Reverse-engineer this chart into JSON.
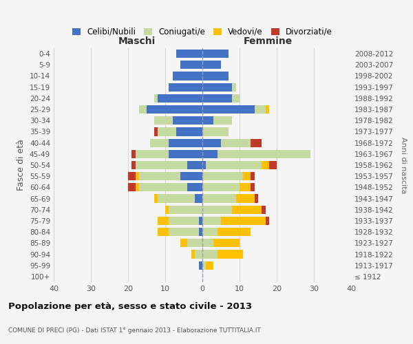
{
  "age_groups": [
    "100+",
    "95-99",
    "90-94",
    "85-89",
    "80-84",
    "75-79",
    "70-74",
    "65-69",
    "60-64",
    "55-59",
    "50-54",
    "45-49",
    "40-44",
    "35-39",
    "30-34",
    "25-29",
    "20-24",
    "15-19",
    "10-14",
    "5-9",
    "0-4"
  ],
  "birth_years": [
    "≤ 1912",
    "1913-1917",
    "1918-1922",
    "1923-1927",
    "1928-1932",
    "1933-1937",
    "1938-1942",
    "1943-1947",
    "1948-1952",
    "1953-1957",
    "1958-1962",
    "1963-1967",
    "1968-1972",
    "1973-1977",
    "1978-1982",
    "1983-1987",
    "1988-1992",
    "1993-1997",
    "1998-2002",
    "2003-2007",
    "2008-2012"
  ],
  "maschi": {
    "celibi": [
      0,
      1,
      0,
      0,
      1,
      1,
      0,
      2,
      4,
      6,
      4,
      9,
      9,
      7,
      8,
      15,
      12,
      9,
      8,
      6,
      7
    ],
    "coniugati": [
      0,
      0,
      2,
      4,
      8,
      8,
      9,
      10,
      13,
      11,
      14,
      9,
      5,
      5,
      5,
      2,
      1,
      0,
      0,
      0,
      0
    ],
    "vedovi": [
      0,
      0,
      1,
      2,
      3,
      3,
      1,
      1,
      1,
      1,
      0,
      0,
      0,
      0,
      0,
      0,
      0,
      0,
      0,
      0,
      0
    ],
    "divorziati": [
      0,
      0,
      0,
      0,
      0,
      0,
      0,
      0,
      2,
      2,
      1,
      1,
      0,
      1,
      0,
      0,
      0,
      0,
      0,
      0,
      0
    ]
  },
  "femmine": {
    "nubili": [
      0,
      0,
      0,
      0,
      0,
      0,
      0,
      0,
      0,
      0,
      1,
      4,
      5,
      0,
      3,
      14,
      8,
      8,
      7,
      5,
      7
    ],
    "coniugate": [
      0,
      1,
      4,
      3,
      4,
      5,
      8,
      9,
      10,
      11,
      15,
      25,
      8,
      7,
      5,
      3,
      2,
      1,
      0,
      0,
      0
    ],
    "vedove": [
      0,
      2,
      7,
      7,
      9,
      12,
      8,
      5,
      3,
      2,
      2,
      0,
      0,
      0,
      0,
      1,
      0,
      0,
      0,
      0,
      0
    ],
    "divorziate": [
      0,
      0,
      0,
      0,
      0,
      1,
      1,
      1,
      1,
      1,
      2,
      0,
      3,
      0,
      0,
      0,
      0,
      0,
      0,
      0,
      0
    ]
  },
  "colors": {
    "celibi": "#4472c4",
    "coniugati": "#c5d9a0",
    "vedovi": "#ffc000",
    "divorziati": "#c0392b"
  },
  "xlim": [
    -40,
    40
  ],
  "xticks": [
    -40,
    -30,
    -20,
    -10,
    0,
    10,
    20,
    30,
    40
  ],
  "xtick_labels": [
    "40",
    "30",
    "20",
    "10",
    "0",
    "10",
    "20",
    "30",
    "40"
  ],
  "title": "Popolazione per età, sesso e stato civile - 2013",
  "subtitle": "COMUNE DI PRECI (PG) - Dati ISTAT 1° gennaio 2013 - Elaborazione TUTTITALIA.IT",
  "ylabel": "Fasce di età",
  "ylabel_right": "Anni di nascita",
  "legend_labels": [
    "Celibi/Nubili",
    "Coniugati/e",
    "Vedovi/e",
    "Divorziati/e"
  ],
  "maschi_label": "Maschi",
  "femmine_label": "Femmine",
  "bg_color": "#f5f5f5",
  "bar_height": 0.75
}
